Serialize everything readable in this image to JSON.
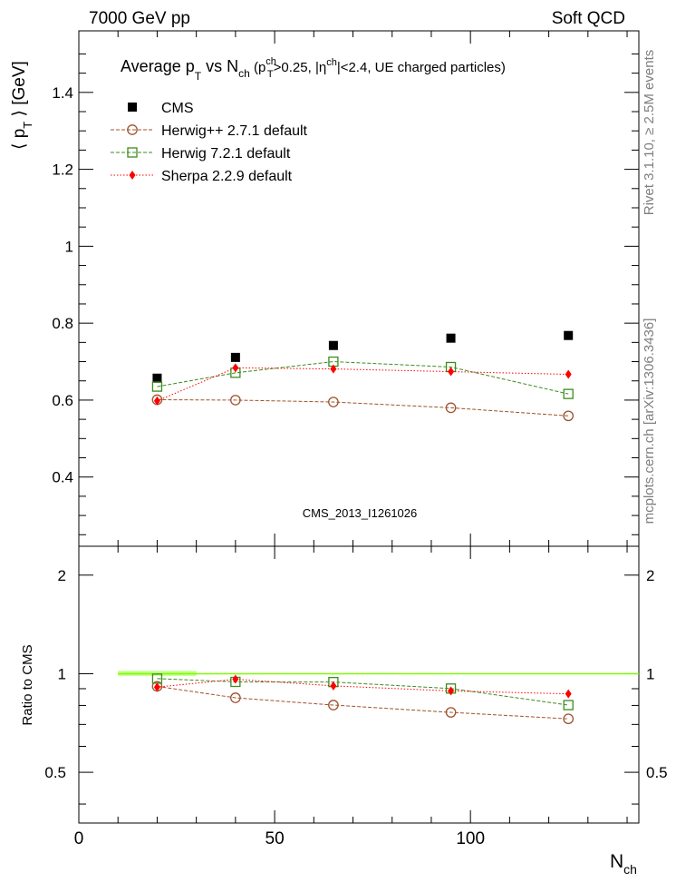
{
  "header": {
    "left": "7000 GeV pp",
    "right": "Soft QCD"
  },
  "side": {
    "top": "Rivet 3.1.10, ≥ 2.5M events",
    "bottom": "mcplots.cern.ch [arXiv:1306.3436]"
  },
  "colors": {
    "cms": "#000000",
    "herwigpp": "#a0522d",
    "herwig7": "#3c8c1e",
    "sherpa": "#ff0000",
    "band": "#7cfc00",
    "watermark": "#a0a0a0"
  },
  "chart_data": [
    {
      "type": "scatter",
      "title": "Average p_T vs N_ch (p_T^ch>0.25, |η^ch|<2.4, UE charged particles)",
      "title_parts": {
        "a": "Average p",
        "b": "T",
        "c": " vs N",
        "d": "ch",
        "e": " (p",
        "f": "ch",
        "g": "T",
        "h": ">0.25, |η",
        "i": "ch",
        "j": "|<2.4, UE charged particles)"
      },
      "ylabel": "⟨ p_T ⟩ [GeV]",
      "ylabel_parts": {
        "a": "⟨ p",
        "b": "T",
        "c": " ⟩ [GeV]"
      },
      "xlim": [
        0,
        143
      ],
      "ylim": [
        0.22,
        1.56
      ],
      "yticks": [
        0.4,
        0.6,
        0.8,
        1,
        1.2,
        1.4
      ],
      "ytick_labels": [
        "0.4",
        "0.6",
        "0.8",
        "1",
        "1.2",
        "1.4"
      ],
      "watermark": "CMS_2013_I1261026",
      "legend_position": "top-left",
      "x": [
        20,
        40,
        65,
        95,
        125
      ],
      "series": [
        {
          "name": "CMS",
          "key": "cms",
          "marker": "square-filled",
          "values": [
            0.657,
            0.711,
            0.742,
            0.761,
            0.768
          ]
        },
        {
          "name": "Herwig++ 2.7.1 default",
          "key": "herwigpp",
          "marker": "circle-open",
          "values": [
            0.601,
            0.6,
            0.595,
            0.58,
            0.559
          ]
        },
        {
          "name": "Herwig 7.2.1 default",
          "key": "herwig7",
          "marker": "square-open",
          "values": [
            0.635,
            0.671,
            0.7,
            0.686,
            0.616
          ]
        },
        {
          "name": "Sherpa 2.2.9 default",
          "key": "sherpa",
          "marker": "diamond-filled",
          "values": [
            0.598,
            0.684,
            0.681,
            0.674,
            0.667
          ]
        }
      ]
    },
    {
      "type": "scatter",
      "ylabel": "Ratio to CMS",
      "xlabel": "N_ch",
      "xlabel_parts": {
        "a": "N",
        "b": "ch"
      },
      "xlim": [
        0,
        143
      ],
      "ylim": [
        0.35,
        2.45
      ],
      "scale": "log",
      "yticks": [
        0.5,
        1,
        2
      ],
      "ytick_labels": [
        "0.5",
        "1",
        "2"
      ],
      "xticks": [
        0,
        50,
        100
      ],
      "xtick_labels": [
        "0",
        "50",
        "100"
      ],
      "reference": 1,
      "x": [
        20,
        40,
        65,
        95,
        125
      ],
      "series": [
        {
          "name": "Herwig++ 2.7.1 default",
          "key": "herwigpp",
          "marker": "circle-open",
          "values": [
            0.915,
            0.844,
            0.802,
            0.762,
            0.728
          ]
        },
        {
          "name": "Herwig 7.2.1 default",
          "key": "herwig7",
          "marker": "square-open",
          "values": [
            0.966,
            0.944,
            0.943,
            0.901,
            0.802
          ]
        },
        {
          "name": "Sherpa 2.2.9 default",
          "key": "sherpa",
          "marker": "diamond-filled",
          "values": [
            0.91,
            0.962,
            0.918,
            0.886,
            0.868
          ]
        }
      ]
    }
  ]
}
